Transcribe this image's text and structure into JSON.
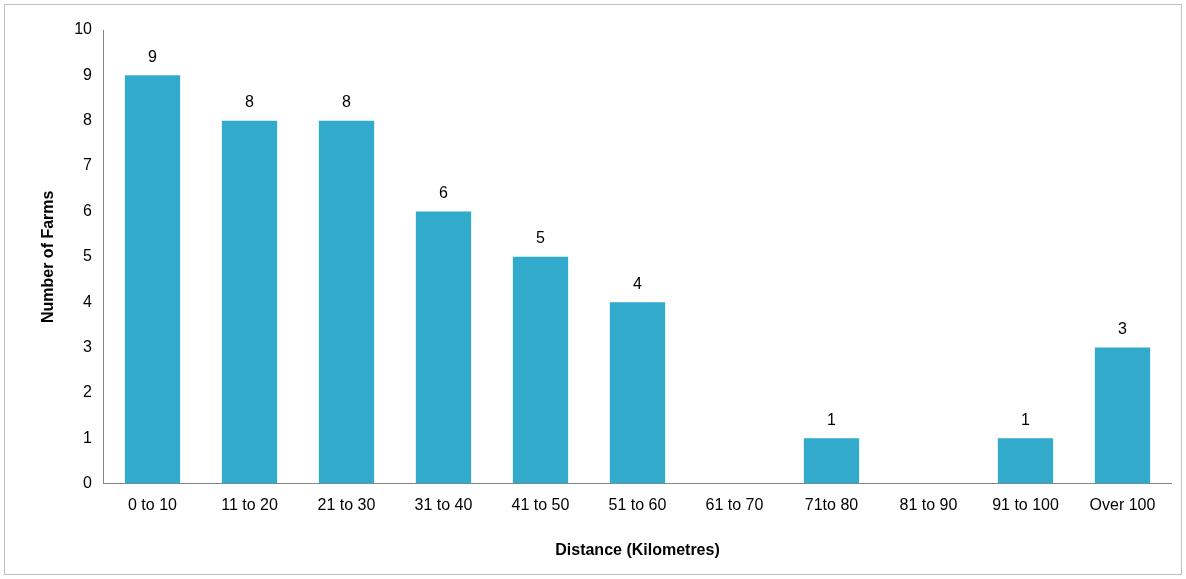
{
  "chart_data": {
    "type": "bar",
    "xlabel": "Distance (Kilometres)",
    "ylabel": "Number of Farms",
    "categories": [
      "0 to 10",
      "11 to 20",
      "21 to 30",
      "31 to 40",
      "41 to 50",
      "51 to 60",
      "61 to 70",
      "71to 80",
      "81 to 90",
      "91 to 100",
      "Over 100"
    ],
    "values": [
      9,
      8,
      8,
      6,
      5,
      4,
      0,
      1,
      0,
      1,
      3
    ],
    "value_labels": [
      "9",
      "8",
      "8",
      "6",
      "5",
      "4",
      null,
      "1",
      null,
      "1",
      "3"
    ],
    "color": "#31aacb",
    "ylim": [
      0,
      10
    ],
    "yticks": [
      0,
      1,
      2,
      3,
      4,
      5,
      6,
      7,
      8,
      9,
      10
    ],
    "grid": false,
    "legend": false
  }
}
